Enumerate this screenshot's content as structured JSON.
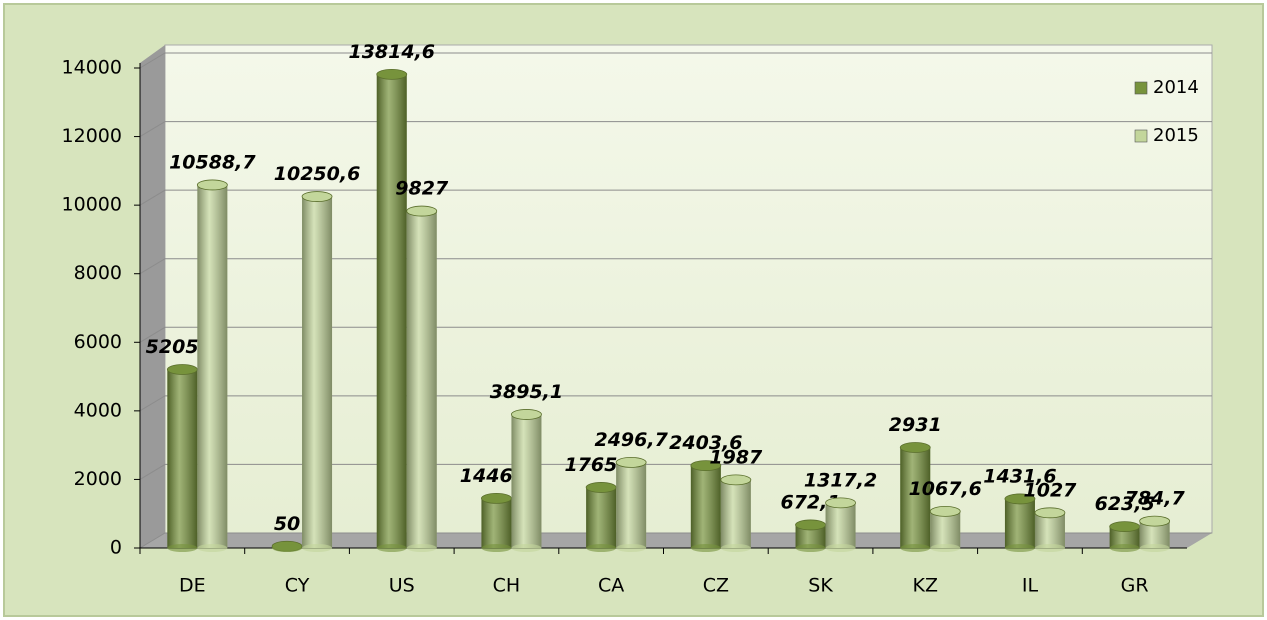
{
  "chart_data": {
    "type": "bar",
    "categories": [
      "DE",
      "CY",
      "US",
      "CH",
      "CA",
      "CZ",
      "SK",
      "KZ",
      "IL",
      "GR"
    ],
    "series": [
      {
        "name": "2014",
        "color": "#77933c",
        "values": [
          5205.8,
          50,
          13814.6,
          1446.7,
          1765.7,
          2403.6,
          672.1,
          2931,
          1431.6,
          623.5
        ],
        "value_labels": [
          "5205,8",
          "50",
          "13814,6",
          "1446,7",
          "1765,7",
          "2403,6",
          "672,1",
          "2931",
          "1431,6",
          "623,5"
        ]
      },
      {
        "name": "2015",
        "color": "#c3d69b",
        "values": [
          10588.7,
          10250.6,
          9827,
          3895.1,
          2496.7,
          1987,
          1317.2,
          1067.6,
          1027,
          784.7
        ],
        "value_labels": [
          "10588,7",
          "10250,6",
          "9827",
          "3895,1",
          "2496,7",
          "1987",
          "1317,2",
          "1067,6",
          "1027",
          "784,7"
        ]
      }
    ],
    "ylim": [
      0,
      14000
    ],
    "yticks": [
      0,
      2000,
      4000,
      6000,
      8000,
      10000,
      12000,
      14000
    ],
    "grid": true,
    "legend": "upper right"
  }
}
